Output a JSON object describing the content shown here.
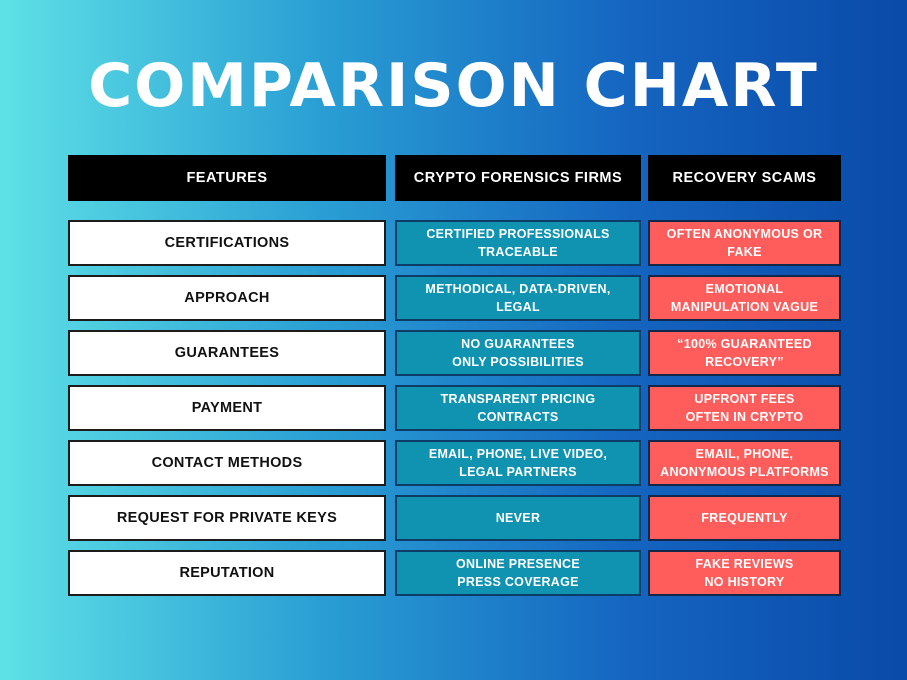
{
  "title": "COMPARISON CHART",
  "headers": [
    "FEATURES",
    "CRYPTO FORENSICS FIRMS",
    "RECOVERY SCAMS"
  ],
  "rows": [
    {
      "feature": "CERTIFICATIONS",
      "firms": "CERTIFIED PROFESSIONALS\nTRACEABLE",
      "scams": "OFTEN ANONYMOUS OR\nFAKE"
    },
    {
      "feature": "APPROACH",
      "firms": "METHODICAL, DATA-DRIVEN,\nLEGAL",
      "scams": "EMOTIONAL\nMANIPULATION VAGUE"
    },
    {
      "feature": "GUARANTEES",
      "firms": "NO GUARANTEES\nONLY POSSIBILITIES",
      "scams": "“100% GUARANTEED\nRECOVERY”"
    },
    {
      "feature": "PAYMENT",
      "firms": "TRANSPARENT PRICING\nCONTRACTS",
      "scams": "UPFRONT FEES\nOFTEN IN CRYPTO"
    },
    {
      "feature": "CONTACT METHODS",
      "firms": "EMAIL, PHONE, LIVE VIDEO,\nLEGAL PARTNERS",
      "scams": "EMAIL, PHONE,\nANONYMOUS PLATFORMS"
    },
    {
      "feature": "REQUEST FOR PRIVATE KEYS",
      "firms": "NEVER",
      "scams": "FREQUENTLY"
    },
    {
      "feature": "REPUTATION",
      "firms": "ONLINE PRESENCE\nPRESS COVERAGE",
      "scams": "FAKE REVIEWS\nNO HISTORY"
    }
  ],
  "colors": {
    "firm_cell": "#0f93b0",
    "scam_cell": "#ff5c5c",
    "header_cell": "#000000",
    "feature_cell": "#ffffff"
  }
}
